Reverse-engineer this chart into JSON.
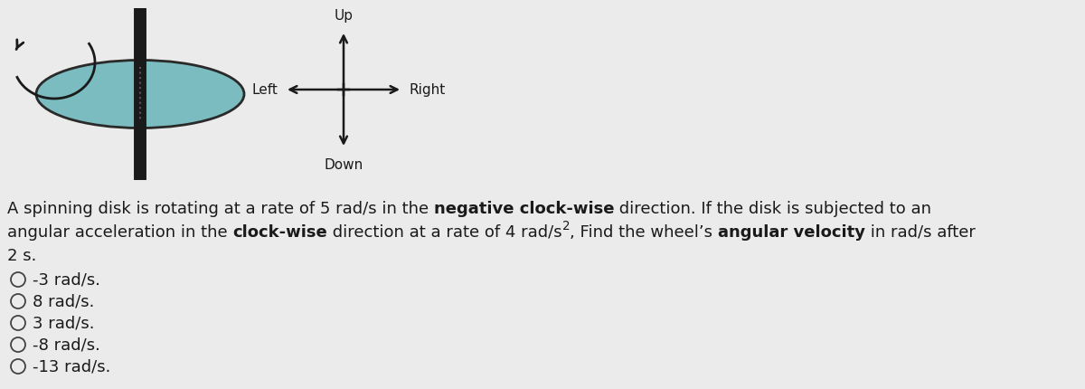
{
  "background_color": "#ebebeb",
  "disk_fill": "#7abcbf",
  "disk_edge": "#2a2a2a",
  "axle_color": "#1a1a1a",
  "arrow_color": "#1a1a1a",
  "text_color": "#1a1a1a",
  "up_label": "Up",
  "down_label": "Down",
  "left_label": "Left",
  "right_label": "Right",
  "options": [
    "-3 rad/s.",
    "8 rad/s.",
    "3 rad/s.",
    "-8 rad/s.",
    "-13 rad/s."
  ],
  "font_size_main": 13,
  "font_size_dir": 11,
  "font_size_options": 13
}
